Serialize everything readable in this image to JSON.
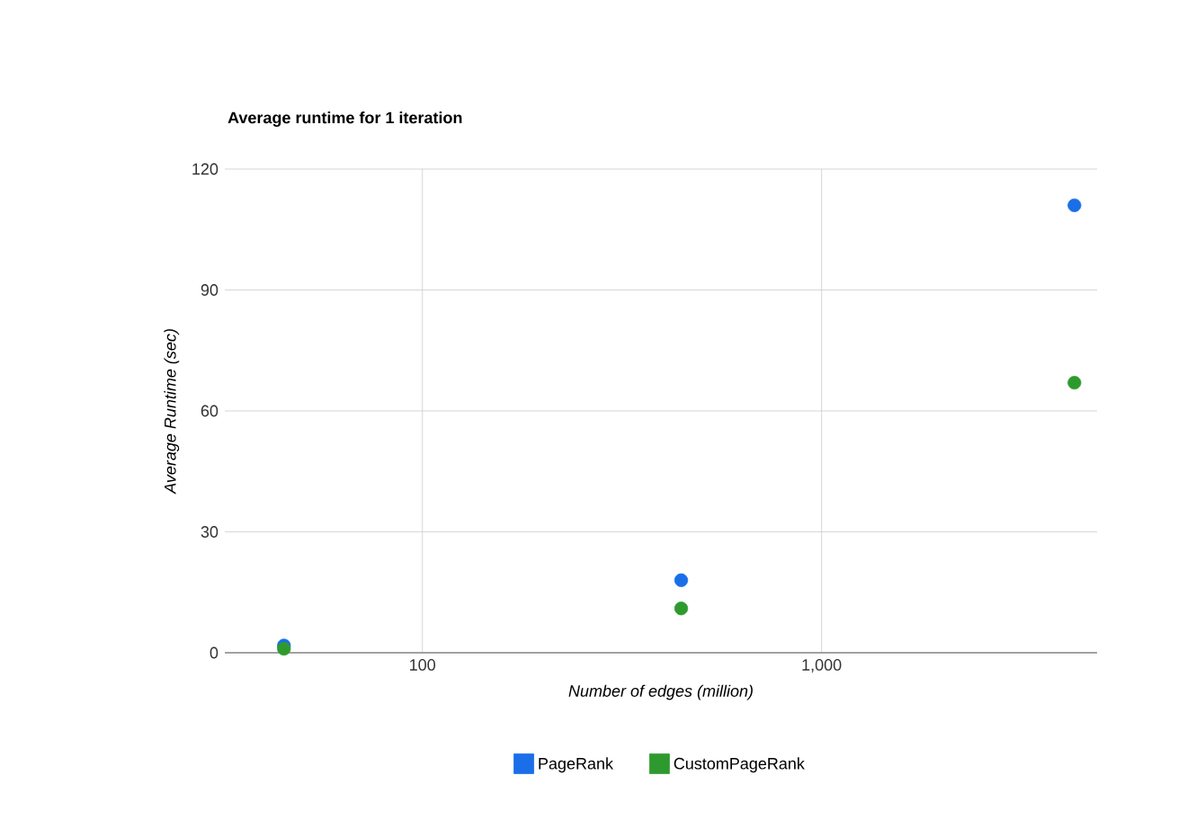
{
  "chart_data": {
    "type": "scatter",
    "title": "Average runtime for 1 iteration",
    "xlabel": "Number of edges (million)",
    "ylabel": "Average Runtime (sec)",
    "log": "x",
    "xlim": [
      32,
      4900
    ],
    "xticks": [
      100,
      {
        "value": 1000,
        "label": "1,000"
      }
    ],
    "ylim": [
      0,
      120
    ],
    "yticks": [
      0,
      30,
      60,
      90,
      120
    ],
    "grid": true,
    "legend": "bottom",
    "series": [
      {
        "name": "PageRank",
        "color": "#1a6ee8",
        "x": [
          45,
          445,
          4300
        ],
        "values": [
          1.8,
          18,
          111
        ]
      },
      {
        "name": "CustomPageRank",
        "color": "#2e9a2e",
        "x": [
          45,
          445,
          4300
        ],
        "values": [
          1,
          11,
          67
        ]
      }
    ]
  }
}
